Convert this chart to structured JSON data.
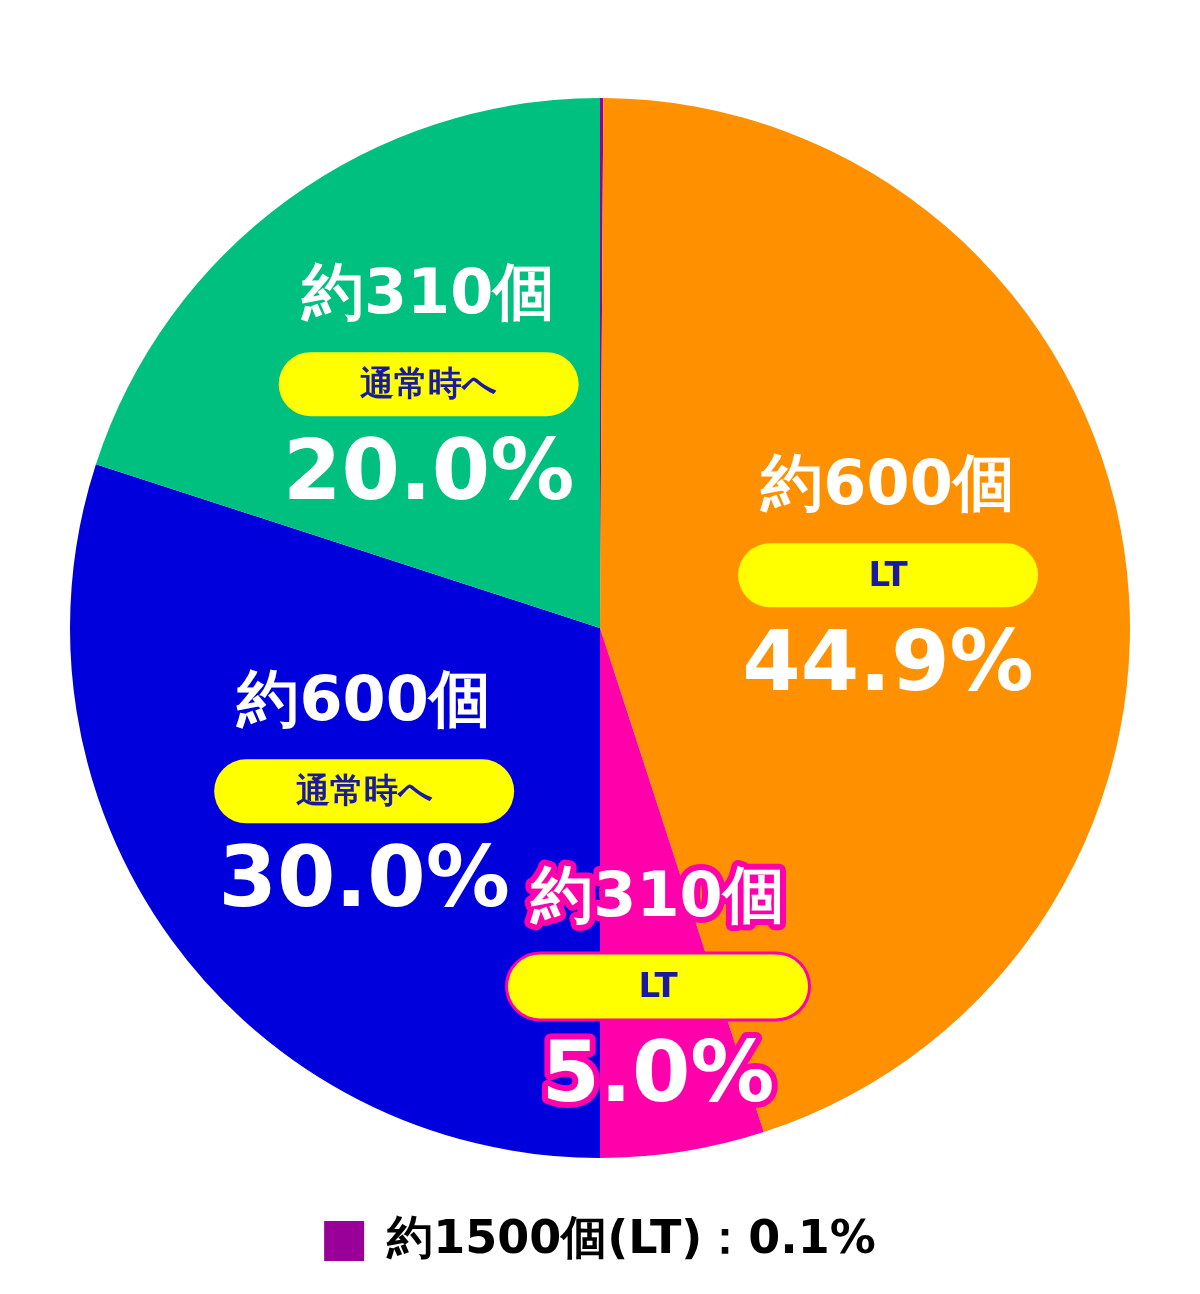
{
  "chart_data": {
    "type": "pie",
    "categories": [
      "約1500個(LT)",
      "約600個",
      "約310個",
      "約600個",
      "約310個"
    ],
    "annotations": [
      "LT",
      "LT",
      "通常時へ",
      "通常時へ"
    ],
    "values": [
      0.1,
      44.9,
      5.0,
      30.0,
      20.0
    ],
    "value_labels": [
      "0.1%",
      "44.9%",
      "5.0%",
      "30.0%",
      "20.0%"
    ],
    "colors": [
      "#990099",
      "#ff9000",
      "#ff00aa",
      "#0000dd",
      "#00c080"
    ],
    "legend": "bottom"
  }
}
